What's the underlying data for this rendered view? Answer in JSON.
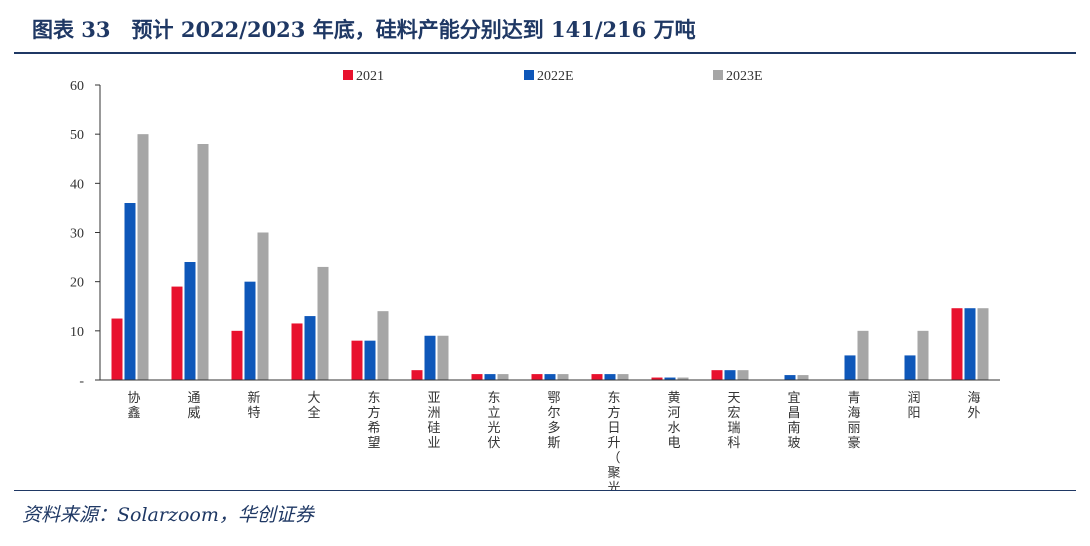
{
  "figure": {
    "title": "图表 33　预计 2022/2023 年底，硅料产能分别达到 141/216 万吨",
    "source": "资料来源：Solarzoom，华创证券"
  },
  "chart_data": {
    "type": "bar",
    "title": "",
    "xlabel": "",
    "ylabel": "",
    "ylim": [
      0,
      60
    ],
    "yticks": [
      0,
      10,
      20,
      30,
      40,
      50,
      60
    ],
    "ytick_labels": [
      "-",
      "10",
      "20",
      "30",
      "40",
      "50",
      "60"
    ],
    "grid": false,
    "legend_position": "top",
    "categories": [
      "协鑫",
      "通威",
      "新特",
      "大全",
      "东方希望",
      "亚洲硅业",
      "东立光伏",
      "鄂尔多斯",
      "东方日升（聚光）",
      "黄河水电",
      "天宏瑞科",
      "宜昌南玻",
      "青海丽豪",
      "润阳",
      "海外"
    ],
    "series": [
      {
        "name": "2021",
        "color": "#e8112d",
        "values": [
          12.5,
          19,
          10,
          11.5,
          8,
          2,
          1.2,
          1.2,
          1.2,
          0.5,
          2,
          0,
          0,
          0,
          14.6
        ]
      },
      {
        "name": "2022E",
        "color": "#0e57b9",
        "values": [
          36,
          24,
          20,
          13,
          8,
          9,
          1.2,
          1.2,
          1.2,
          0.5,
          2,
          1,
          5,
          5,
          14.6
        ]
      },
      {
        "name": "2023E",
        "color": "#a6a6a6",
        "values": [
          50,
          48,
          30,
          23,
          14,
          9,
          1.2,
          1.2,
          1.2,
          0.5,
          2,
          1,
          10,
          10,
          14.6
        ]
      }
    ]
  }
}
